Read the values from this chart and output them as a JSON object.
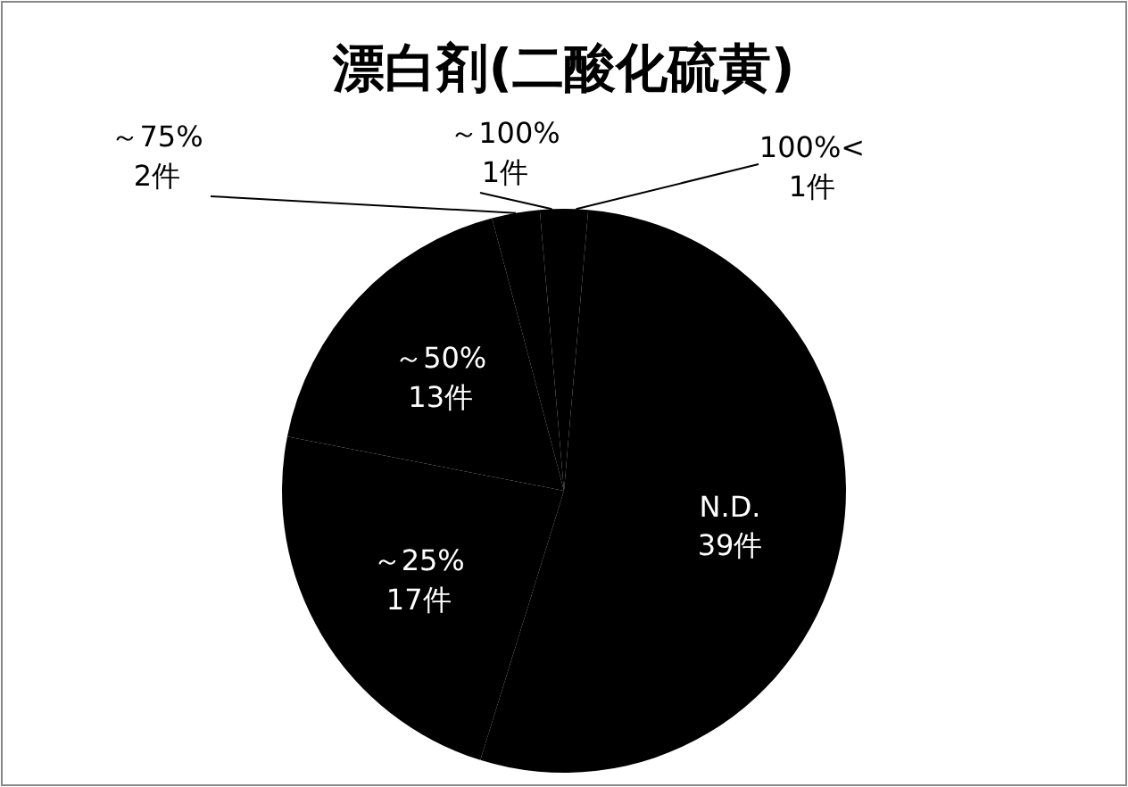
{
  "chart_data": {
    "type": "pie",
    "title": "漂白剤(二酸化硫黄)",
    "categories": [
      "100%<",
      "N.D.",
      "～25%",
      "～50%",
      "～75%",
      "～100%"
    ],
    "values": [
      1,
      39,
      17,
      13,
      2,
      1
    ],
    "colors": [
      "#000000",
      "#000000",
      "#000000",
      "#000000",
      "#000000",
      "#000000"
    ],
    "value_labels": [
      "1件",
      "39件",
      "17件",
      "13件",
      "2件",
      "1件"
    ]
  }
}
